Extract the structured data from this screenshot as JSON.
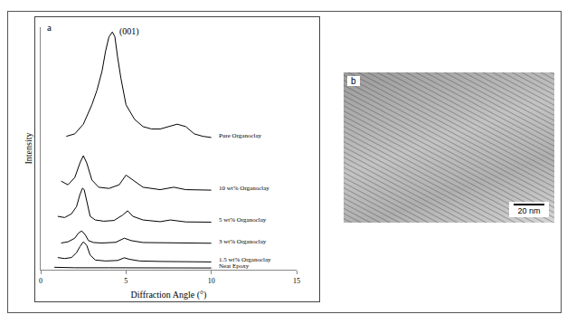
{
  "chart_data": {
    "type": "line",
    "title": "a",
    "xlabel": "Diffraction Angle (°)",
    "ylabel": "Intensity",
    "xlim": [
      0,
      15
    ],
    "xticks": [
      0,
      5,
      10,
      15
    ],
    "ylim": [
      0,
      100
    ],
    "yticks": [],
    "tick_labels": "x",
    "grid": false,
    "annotations": [
      {
        "text": "(001)",
        "x": 4.5,
        "y": 98
      }
    ],
    "series": [
      {
        "name": "Pure Organoclay",
        "color": "#000000",
        "x": [
          1.5,
          2,
          2.5,
          3,
          3.3,
          3.6,
          3.8,
          4.0,
          4.2,
          4.35,
          4.5,
          4.7,
          5.0,
          5.5,
          6,
          6.5,
          7,
          7.5,
          8,
          8.5,
          9,
          9.5,
          10
        ],
        "values": [
          55,
          56,
          60,
          68,
          74,
          82,
          90,
          96,
          98,
          96,
          88,
          79,
          68,
          62,
          59,
          58,
          58,
          59,
          60,
          59,
          56,
          55,
          54.5
        ]
      },
      {
        "name": "10 wt% Organoclay",
        "color": "#000000",
        "x": [
          1.2,
          1.6,
          2.0,
          2.3,
          2.5,
          2.7,
          3.0,
          3.4,
          4.0,
          4.6,
          5.0,
          5.4,
          6.0,
          7.0,
          7.8,
          8.5,
          10
        ],
        "values": [
          36.5,
          35,
          38,
          44,
          47,
          44,
          37,
          34,
          33.5,
          35,
          39,
          37,
          34,
          33,
          34,
          33,
          32.8
        ]
      },
      {
        "name": "5 wt% Organoclay",
        "color": "#000000",
        "x": [
          1.0,
          1.4,
          1.8,
          2.1,
          2.3,
          2.45,
          2.55,
          2.7,
          2.9,
          3.2,
          3.7,
          4.3,
          4.8,
          5.1,
          5.4,
          6,
          7,
          7.6,
          8.5,
          10
        ],
        "values": [
          22,
          21.5,
          23,
          26,
          31,
          33.6,
          33,
          28,
          22,
          20.5,
          20,
          20.3,
          22.5,
          24.3,
          22,
          20.5,
          19.8,
          20.5,
          19.7,
          19.6
        ]
      },
      {
        "name": "3 wt% Organoclay",
        "color": "#000000",
        "x": [
          1.2,
          1.6,
          2.0,
          2.2,
          2.4,
          2.6,
          2.8,
          3.1,
          3.6,
          4.4,
          4.9,
          5.3,
          6,
          7.5,
          9,
          10
        ],
        "values": [
          11,
          11.5,
          13,
          15,
          16,
          14.5,
          12,
          11.2,
          11,
          11.3,
          13,
          12,
          11.2,
          11,
          10.9,
          10.9
        ]
      },
      {
        "name": "1.5 wt% Organoclay",
        "color": "#000000",
        "x": [
          1.0,
          1.4,
          1.8,
          2.1,
          2.3,
          2.5,
          2.7,
          2.9,
          3.2,
          3.8,
          4.5,
          4.9,
          5.2,
          5.8,
          7,
          8.5,
          10
        ],
        "values": [
          5,
          4.6,
          5,
          7,
          9.5,
          11.5,
          10,
          6,
          4,
          3.6,
          3.8,
          4.9,
          4.3,
          3.6,
          3.4,
          3.3,
          3.2
        ]
      },
      {
        "name": "Neat Epoxy",
        "color": "#000000",
        "x": [
          0.8,
          2,
          4,
          6,
          8,
          10
        ],
        "values": [
          1,
          0.8,
          0.8,
          0.7,
          0.7,
          0.7
        ]
      }
    ]
  },
  "image": {
    "label": "b",
    "scale_bar": "20 nm"
  }
}
